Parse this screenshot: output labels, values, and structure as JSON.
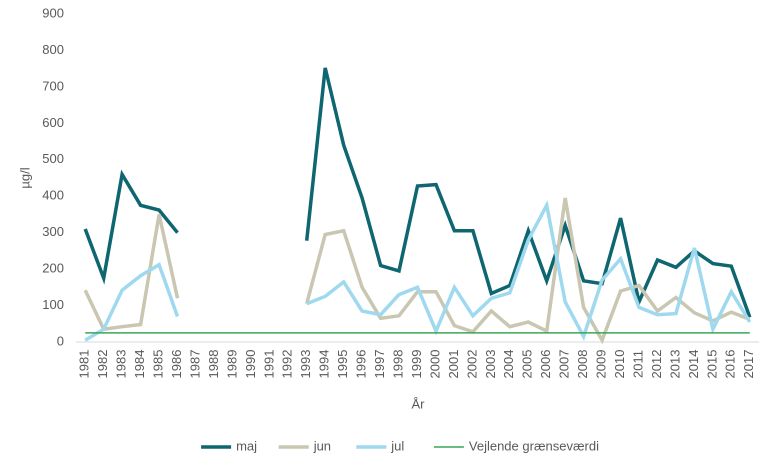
{
  "chart_data": {
    "type": "line",
    "categories": [
      "1981",
      "1982",
      "1983",
      "1984",
      "1985",
      "1986",
      "1987",
      "1988",
      "1989",
      "1990",
      "1991",
      "1992",
      "1993",
      "1994",
      "1995",
      "1996",
      "1997",
      "1998",
      "1999",
      "2000",
      "2001",
      "2002",
      "2003",
      "2004",
      "2005",
      "2006",
      "2007",
      "2008",
      "2009",
      "2010",
      "2011",
      "2012",
      "2013",
      "2014",
      "2015",
      "2016",
      "2017"
    ],
    "series": [
      {
        "name": "maj",
        "color": "#0e6670",
        "width": 3.5,
        "values": [
          310,
          175,
          460,
          375,
          362,
          300,
          null,
          null,
          null,
          null,
          null,
          null,
          278,
          752,
          540,
          395,
          210,
          195,
          428,
          432,
          305,
          305,
          133,
          155,
          305,
          168,
          320,
          168,
          160,
          340,
          110,
          225,
          205,
          250,
          215,
          208,
          68
        ]
      },
      {
        "name": "jun",
        "color": "#c9c6b1",
        "width": 3.5,
        "values": [
          142,
          35,
          42,
          48,
          350,
          120,
          null,
          null,
          null,
          null,
          null,
          null,
          105,
          295,
          305,
          150,
          65,
          72,
          138,
          138,
          45,
          28,
          85,
          42,
          55,
          30,
          395,
          95,
          5,
          140,
          155,
          85,
          122,
          80,
          58,
          82,
          62
        ]
      },
      {
        "name": "jul",
        "color": "#9fd9ef",
        "width": 3.5,
        "values": [
          5,
          35,
          142,
          182,
          212,
          70,
          null,
          null,
          null,
          null,
          null,
          null,
          105,
          125,
          165,
          85,
          75,
          130,
          150,
          30,
          150,
          72,
          120,
          135,
          280,
          375,
          110,
          15,
          170,
          228,
          95,
          75,
          78,
          258,
          35,
          138,
          55
        ]
      },
      {
        "name": "Vejlende grænseværdi",
        "color": "#3aa655",
        "width": 1.5,
        "values": [
          25,
          25,
          25,
          25,
          25,
          25,
          25,
          25,
          25,
          25,
          25,
          25,
          25,
          25,
          25,
          25,
          25,
          25,
          25,
          25,
          25,
          25,
          25,
          25,
          25,
          25,
          25,
          25,
          25,
          25,
          25,
          25,
          25,
          25,
          25,
          25,
          25
        ]
      }
    ],
    "ylim": [
      0,
      900
    ],
    "yticks": [
      0,
      100,
      200,
      300,
      400,
      500,
      600,
      700,
      800,
      900
    ],
    "y_label": "µg/l",
    "x_label": "År",
    "legend": "bottom"
  }
}
